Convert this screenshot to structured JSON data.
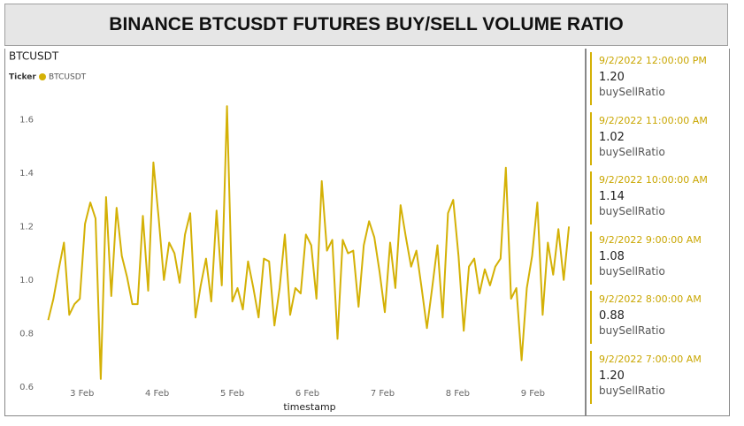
{
  "header": {
    "title": "BINANCE BTCUSDT FUTURES BUY/SELL VOLUME RATIO"
  },
  "chart_data": {
    "type": "line",
    "title": "BTCUSDT",
    "legend_title": "Ticker",
    "xlabel": "timestamp",
    "x": [
      2.55,
      2.62,
      2.69,
      2.76,
      2.83,
      2.9,
      2.97,
      3.04,
      3.11,
      3.18,
      3.25,
      3.32,
      3.39,
      3.46,
      3.53,
      3.6,
      3.67,
      3.74,
      3.81,
      3.88,
      3.95,
      4.02,
      4.09,
      4.16,
      4.23,
      4.3,
      4.37,
      4.44,
      4.51,
      4.58,
      4.65,
      4.72,
      4.79,
      4.86,
      4.93,
      5.0,
      5.07,
      5.14,
      5.21,
      5.28,
      5.35,
      5.42,
      5.49,
      5.56,
      5.63,
      5.7,
      5.77,
      5.84,
      5.91,
      5.98,
      6.05,
      6.12,
      6.19,
      6.26,
      6.33,
      6.4,
      6.47,
      6.54,
      6.61,
      6.68,
      6.75,
      6.82,
      6.89,
      6.96,
      7.03,
      7.1,
      7.17,
      7.24,
      7.31,
      7.38,
      7.45,
      7.52,
      7.59,
      7.66,
      7.73,
      7.8,
      7.87,
      7.94,
      8.01,
      8.08,
      8.15,
      8.22,
      8.29,
      8.36,
      8.43,
      8.5,
      8.57,
      8.64,
      8.71,
      8.78,
      8.85,
      8.92,
      8.99,
      9.06,
      9.13,
      9.2,
      9.27,
      9.34,
      9.41,
      9.48
    ],
    "series": [
      {
        "name": "BTCUSDT",
        "color": "#d4b106",
        "values": [
          0.85,
          0.93,
          1.04,
          1.14,
          0.87,
          0.91,
          0.93,
          1.21,
          1.29,
          1.23,
          0.63,
          1.31,
          0.94,
          1.27,
          1.09,
          1.01,
          0.91,
          0.91,
          1.24,
          0.96,
          1.44,
          1.23,
          1.0,
          1.14,
          1.1,
          0.99,
          1.17,
          1.25,
          0.86,
          0.98,
          1.08,
          0.92,
          1.26,
          0.98,
          1.65,
          0.92,
          0.97,
          0.89,
          1.07,
          0.97,
          0.86,
          1.08,
          1.07,
          0.83,
          0.97,
          1.17,
          0.87,
          0.97,
          0.95,
          1.17,
          1.13,
          0.93,
          1.37,
          1.11,
          1.15,
          0.78,
          1.15,
          1.1,
          1.11,
          0.9,
          1.13,
          1.22,
          1.16,
          1.03,
          0.88,
          1.14,
          0.97,
          1.28,
          1.16,
          1.05,
          1.11,
          0.97,
          0.82,
          0.97,
          1.13,
          0.86,
          1.25,
          1.3,
          1.09,
          0.81,
          1.05,
          1.08,
          0.95,
          1.04,
          0.98,
          1.05,
          1.08,
          1.42,
          0.93,
          0.97,
          0.7,
          0.97,
          1.09,
          1.29,
          0.87,
          1.14,
          1.02,
          1.19,
          1.0,
          1.2
        ]
      }
    ],
    "xlim": [
      2.45,
      9.62
    ],
    "xticks": [
      {
        "value": 3,
        "label": "3 Feb"
      },
      {
        "value": 4,
        "label": "4 Feb"
      },
      {
        "value": 5,
        "label": "5 Feb"
      },
      {
        "value": 6,
        "label": "6 Feb"
      },
      {
        "value": 7,
        "label": "7 Feb"
      },
      {
        "value": 8,
        "label": "8 Feb"
      },
      {
        "value": 9,
        "label": "9 Feb"
      }
    ],
    "ylim": [
      0.56,
      1.7
    ],
    "yticks": [
      0.6,
      0.8,
      {
        "value": 1,
        "label": "1.0"
      },
      1.2,
      1.4,
      1.6
    ],
    "grid": false
  },
  "cards": [
    {
      "date": "9/2/2022 12:00:00 PM",
      "value": "1.20",
      "label": "buySellRatio"
    },
    {
      "date": "9/2/2022 11:00:00 AM",
      "value": "1.02",
      "label": "buySellRatio"
    },
    {
      "date": "9/2/2022 10:00:00 AM",
      "value": "1.14",
      "label": "buySellRatio"
    },
    {
      "date": "9/2/2022 9:00:00 AM",
      "value": "1.08",
      "label": "buySellRatio"
    },
    {
      "date": "9/2/2022 8:00:00 AM",
      "value": "0.88",
      "label": "buySellRatio"
    },
    {
      "date": "9/2/2022 7:00:00 AM",
      "value": "1.20",
      "label": "buySellRatio"
    }
  ]
}
